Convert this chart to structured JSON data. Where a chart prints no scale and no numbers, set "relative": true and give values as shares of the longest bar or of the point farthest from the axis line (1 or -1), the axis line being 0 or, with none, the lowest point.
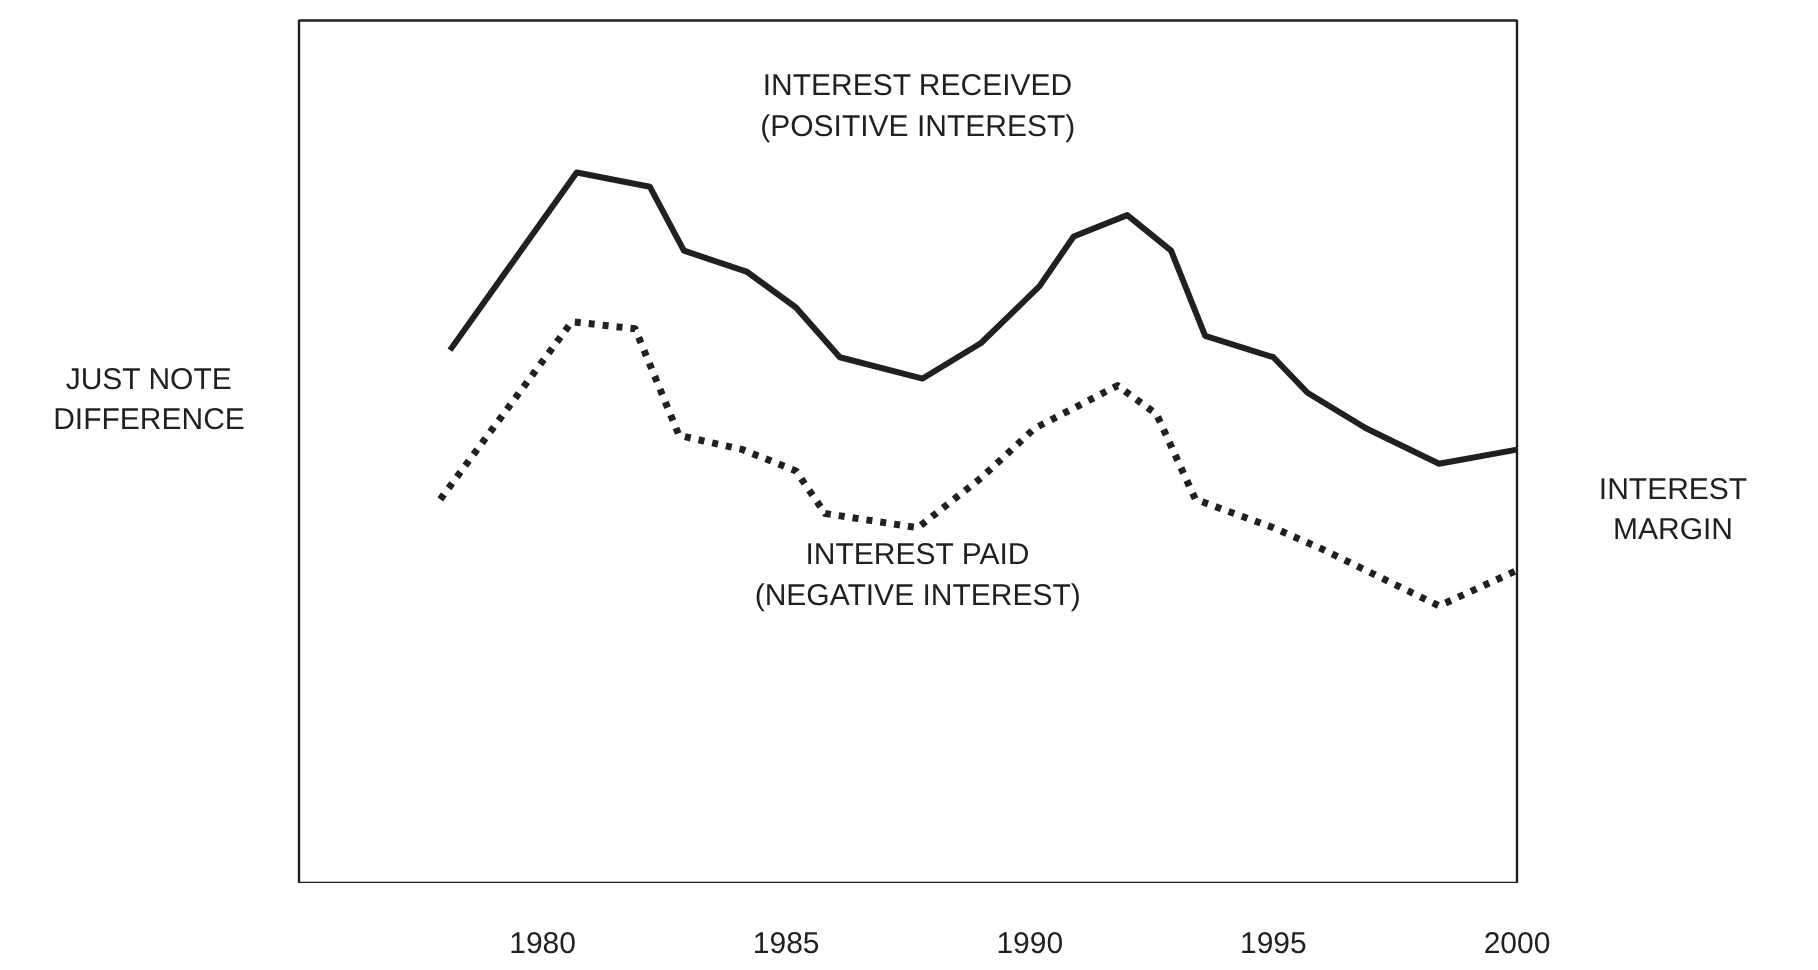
{
  "chart_data": {
    "type": "line",
    "relative": true,
    "xlim": [
      1975,
      2000
    ],
    "xticks": [
      1980,
      1985,
      1990,
      1995,
      2000
    ],
    "series": [
      {
        "name": "INTEREST RECEIVED\n(POSITIVE INTEREST)",
        "color": "#231f20",
        "line_style": "solid",
        "x": [
          1978.1,
          1980.7,
          1982.2,
          1982.9,
          1984.2,
          1985.2,
          1986.1,
          1987.8,
          1989.0,
          1990.2,
          1990.9,
          1992.0,
          1992.9,
          1993.6,
          1995.0,
          1995.7,
          1996.9,
          1998.4,
          2000
        ],
        "values": [
          0.75,
          1,
          0.98,
          0.89,
          0.86,
          0.81,
          0.74,
          0.71,
          0.76,
          0.84,
          0.91,
          0.94,
          0.89,
          0.77,
          0.74,
          0.69,
          0.64,
          0.59,
          0.61
        ]
      },
      {
        "name": "INTEREST PAID\n(NEGATIVE INTEREST)",
        "color": "#231f20",
        "line_style": "dotted",
        "x": [
          1977.9,
          1980.6,
          1981.9,
          1982.8,
          1984.1,
          1985.2,
          1985.8,
          1987.7,
          1989.0,
          1990.1,
          1991.8,
          1992.6,
          1993.4,
          1995.0,
          1996.0,
          1998.4,
          2000
        ],
        "values": [
          0.54,
          0.79,
          0.78,
          0.63,
          0.61,
          0.58,
          0.52,
          0.5,
          0.57,
          0.64,
          0.7,
          0.66,
          0.54,
          0.5,
          0.47,
          0.39,
          0.44
        ]
      }
    ],
    "annotations": [
      "JUST NOTE\nDIFFERENCE",
      "INTEREST MARGIN"
    ],
    "grid": false
  }
}
